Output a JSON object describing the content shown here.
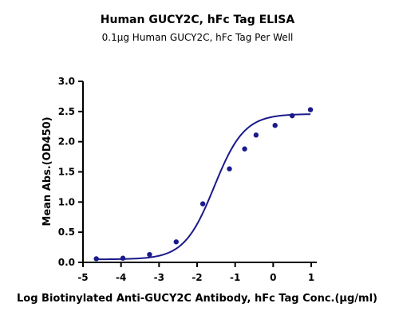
{
  "chart_data": {
    "type": "scatter",
    "title": "Human GUCY2C, hFc Tag ELISA",
    "subtitle": "0.1μg Human GUCY2C, hFc Tag Per Well",
    "xlabel": "Log Biotinylated Anti-GUCY2C Antibody, hFc Tag Conc.(μg/ml)",
    "ylabel": "Mean Abs.(OD450)",
    "xlim": [
      -5,
      1
    ],
    "ylim": [
      0,
      3.0
    ],
    "xticks": [
      "-5",
      "-4",
      "-3",
      "-2",
      "-1",
      "0",
      "1"
    ],
    "yticks": [
      "0.0",
      "0.5",
      "1.0",
      "1.5",
      "2.0",
      "2.5",
      "3.0"
    ],
    "grid": false,
    "colors": {
      "series": "#1a1a8c",
      "axis": "#000000"
    },
    "series": [
      {
        "points": [
          {
            "x": -4.65,
            "y": 0.06
          },
          {
            "x": -3.95,
            "y": 0.07
          },
          {
            "x": -3.25,
            "y": 0.13
          },
          {
            "x": -2.55,
            "y": 0.34
          },
          {
            "x": -1.85,
            "y": 0.97
          },
          {
            "x": -1.15,
            "y": 1.55
          },
          {
            "x": -0.75,
            "y": 1.88
          },
          {
            "x": -0.45,
            "y": 2.11
          },
          {
            "x": 0.05,
            "y": 2.27
          },
          {
            "x": 0.5,
            "y": 2.43
          },
          {
            "x": 0.98,
            "y": 2.53
          }
        ],
        "fit": {
          "model": "4PL",
          "bottom": 0.05,
          "top": 2.46,
          "logEC50": -1.55,
          "hill": 1.1
        }
      }
    ]
  }
}
